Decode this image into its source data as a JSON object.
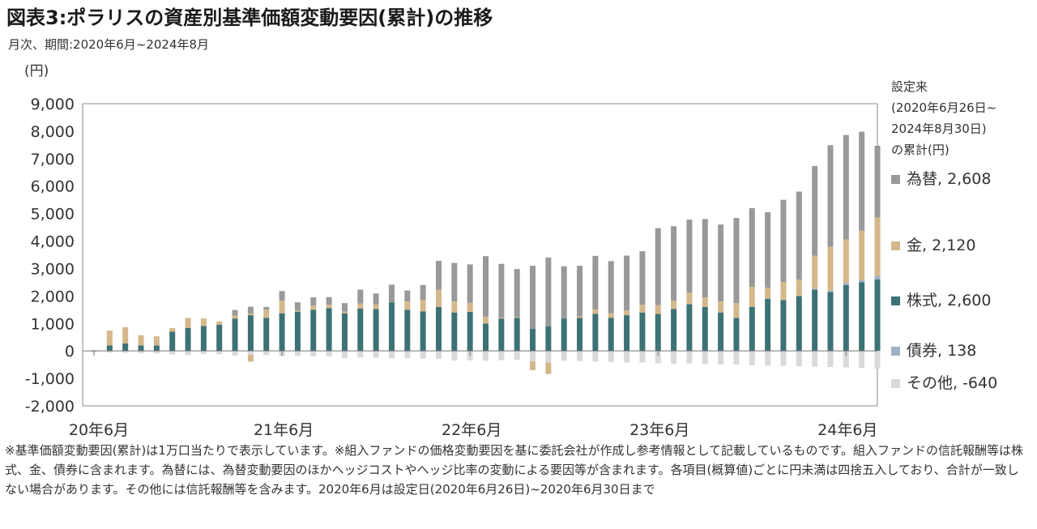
{
  "title": "図表3:ポラリスの資産別基準価額変動要因(累計)の推移",
  "subtitle": "月次、期間:2020年6月~2024年8月",
  "unit_label": "(円)",
  "legend": {
    "title_lines": [
      "設定来",
      "(2020年6月26日~",
      "2024年8月30日)",
      "の累計(円)"
    ],
    "items": [
      {
        "label": "為替, 2,608",
        "color": "#999999"
      },
      {
        "label": "金, 2,120",
        "color": "#d4b78a"
      },
      {
        "label": "株式, 2,600",
        "color": "#3d7275"
      },
      {
        "label": "債券, 138",
        "color": "#9fb0c4"
      },
      {
        "label": "その他, -640",
        "color": "#d9d9d9"
      }
    ]
  },
  "footnote": "※基準価額変動要因(累計)は1万口当たりで表示しています。※組入ファンドの価格変動要因を基に委託会社が作成し参考情報として記載しているものです。組入ファンドの信託報酬等は株式、金、債券に含まれます。為替には、為替変動要因のほかヘッジコストやヘッジ比率の変動による要因等が含まれます。各項目(概算値)ごとに円未満は四捨五入しており、合計が一致しない場合があります。その他には信託報酬等を含みます。2020年6月は設定日(2020年6月26日)~2020年6月30日まで",
  "chart_data": {
    "type": "bar",
    "stacked": true,
    "ylim": [
      -2000,
      9000
    ],
    "yticks": [
      -2000,
      -1000,
      0,
      1000,
      2000,
      3000,
      4000,
      5000,
      6000,
      7000,
      8000,
      9000
    ],
    "ytick_labels": [
      "-2,000",
      "-1,000",
      "0",
      "1,000",
      "2,000",
      "3,000",
      "4,000",
      "5,000",
      "6,000",
      "7,000",
      "8,000",
      "9,000"
    ],
    "x_tick_labels": [
      "20年6月",
      "21年6月",
      "22年6月",
      "23年6月",
      "24年6月"
    ],
    "x_tick_indices": [
      0,
      12,
      24,
      36,
      48
    ],
    "categories": [
      "2020-06",
      "2020-07",
      "2020-08",
      "2020-09",
      "2020-10",
      "2020-11",
      "2020-12",
      "2021-01",
      "2021-02",
      "2021-03",
      "2021-04",
      "2021-05",
      "2021-06",
      "2021-07",
      "2021-08",
      "2021-09",
      "2021-10",
      "2021-11",
      "2021-12",
      "2022-01",
      "2022-02",
      "2022-03",
      "2022-04",
      "2022-05",
      "2022-06",
      "2022-07",
      "2022-08",
      "2022-09",
      "2022-10",
      "2022-11",
      "2022-12",
      "2023-01",
      "2023-02",
      "2023-03",
      "2023-04",
      "2023-05",
      "2023-06",
      "2023-07",
      "2023-08",
      "2023-09",
      "2023-10",
      "2023-11",
      "2023-12",
      "2024-01",
      "2024-02",
      "2024-03",
      "2024-04",
      "2024-05",
      "2024-06",
      "2024-07",
      "2024-08"
    ],
    "series": [
      {
        "name": "株式",
        "color": "#3d7275",
        "values": [
          20,
          200,
          270,
          200,
          200,
          700,
          840,
          910,
          950,
          1180,
          1300,
          1200,
          1370,
          1430,
          1500,
          1560,
          1370,
          1540,
          1530,
          1760,
          1500,
          1440,
          1600,
          1400,
          1420,
          1000,
          1180,
          1200,
          800,
          900,
          1180,
          1200,
          1350,
          1200,
          1300,
          1400,
          1350,
          1530,
          1700,
          1600,
          1400,
          1200,
          1600,
          1900,
          1850,
          2000,
          2230,
          2150,
          2400,
          2500,
          2600
        ]
      },
      {
        "name": "債券",
        "color": "#9fb0c4",
        "values": [
          0,
          0,
          0,
          0,
          0,
          0,
          0,
          0,
          0,
          0,
          0,
          0,
          0,
          0,
          0,
          0,
          0,
          0,
          0,
          0,
          0,
          0,
          0,
          0,
          0,
          0,
          0,
          0,
          0,
          0,
          0,
          0,
          0,
          0,
          0,
          0,
          0,
          0,
          0,
          0,
          0,
          0,
          0,
          0,
          0,
          0,
          40,
          40,
          60,
          80,
          138
        ]
      },
      {
        "name": "金",
        "color": "#d4b78a",
        "values": [
          0,
          540,
          590,
          370,
          330,
          130,
          360,
          270,
          120,
          110,
          60,
          300,
          460,
          40,
          150,
          120,
          70,
          190,
          160,
          0,
          300,
          420,
          630,
          400,
          330,
          250,
          30,
          30,
          0,
          0,
          0,
          50,
          160,
          170,
          170,
          280,
          320,
          300,
          420,
          350,
          400,
          540,
          730,
          400,
          650,
          600,
          1200,
          1600,
          1600,
          1800,
          2120
        ]
      },
      {
        "name": "為替",
        "color": "#999999",
        "values": [
          0,
          0,
          0,
          0,
          0,
          0,
          0,
          0,
          0,
          200,
          250,
          100,
          350,
          300,
          300,
          280,
          300,
          500,
          400,
          650,
          400,
          540,
          1050,
          1400,
          1400,
          2200,
          1960,
          1750,
          2300,
          2500,
          1900,
          1850,
          1950,
          1900,
          2000,
          1950,
          2800,
          2710,
          2660,
          2850,
          2800,
          3100,
          2870,
          2750,
          3000,
          3200,
          3260,
          3700,
          3800,
          3600,
          2608
        ]
      },
      {
        "name": "その他",
        "color": "#d9d9d9",
        "values": [
          -50,
          -60,
          -70,
          -80,
          -90,
          -130,
          -150,
          -110,
          -120,
          -170,
          -140,
          -150,
          -180,
          -180,
          -200,
          -200,
          -260,
          -230,
          -240,
          -270,
          -260,
          -280,
          -290,
          -350,
          -340,
          -360,
          -340,
          -320,
          -380,
          -420,
          -360,
          -370,
          -390,
          -400,
          -430,
          -420,
          -450,
          -470,
          -460,
          -480,
          -490,
          -500,
          -520,
          -530,
          -540,
          -560,
          -570,
          -590,
          -600,
          -620,
          -640
        ]
      },
      {
        "name": "金(マイナス)",
        "color": "#d4b78a",
        "negative_only": true,
        "values": [
          0,
          0,
          0,
          0,
          0,
          0,
          0,
          0,
          0,
          0,
          -250,
          0,
          0,
          0,
          0,
          0,
          0,
          0,
          0,
          0,
          0,
          0,
          0,
          0,
          0,
          0,
          0,
          0,
          -320,
          -420,
          0,
          0,
          0,
          0,
          0,
          0,
          0,
          0,
          0,
          0,
          0,
          0,
          0,
          0,
          0,
          0,
          0,
          0,
          0,
          0,
          0
        ]
      }
    ]
  }
}
